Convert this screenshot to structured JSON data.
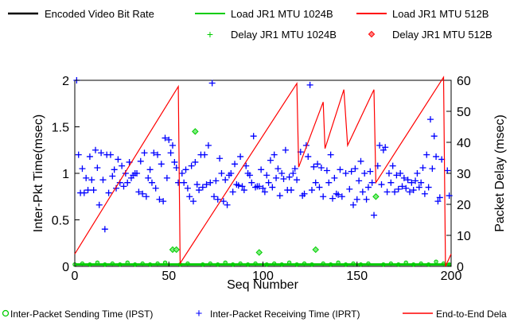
{
  "chart_data": {
    "type": "scatter",
    "xlabel": "Seq Number",
    "ylabel": "Inter-Pkt Time(msec)",
    "y2label": "Packet Delay (msec)",
    "xlim": [
      0,
      200
    ],
    "ylim": [
      0,
      2
    ],
    "y2lim": [
      0,
      60
    ],
    "xticks": [
      "0",
      "50",
      "100",
      "150",
      "200"
    ],
    "yticks": [
      "0",
      "0.5",
      "1",
      "1.5",
      "2"
    ],
    "y2ticks": [
      "0",
      "10",
      "20",
      "30",
      "40",
      "50",
      "60"
    ],
    "legend_top": [
      {
        "label": "Encoded Video Bit Rate",
        "symbol": "line",
        "color": "#000000"
      },
      {
        "label": "Load JR1 MTU 1024B",
        "symbol": "line",
        "color": "#00cc00"
      },
      {
        "label": "Load JR1 MTU 512B",
        "symbol": "line",
        "color": "#ff0000"
      },
      {
        "label": "Delay JR1 MTU 1024B",
        "symbol": "plus",
        "color": "#00cc00"
      },
      {
        "label": "Delay JR1 MTU 512B",
        "symbol": "diamond",
        "color": "#ff0000"
      }
    ],
    "legend_bottom": [
      {
        "label": "Inter-Packet Sending Time (IPST)",
        "symbol": "circle",
        "color": "#00cc00"
      },
      {
        "label": "Inter-Packet Receiving Time (IPRT)",
        "symbol": "plus",
        "color": "#0000ff"
      },
      {
        "label": "End-to-End Dela",
        "symbol": "line",
        "color": "#ff0000"
      }
    ],
    "series": [
      {
        "name": "End-to-End Dela",
        "axis": "right",
        "style": "line",
        "color": "#ff0000",
        "points": [
          [
            0,
            4
          ],
          [
            55,
            58
          ],
          [
            56,
            1
          ],
          [
            118,
            59
          ],
          [
            119,
            32
          ],
          [
            132,
            53
          ],
          [
            133,
            38
          ],
          [
            143,
            57
          ],
          [
            145,
            39
          ],
          [
            159,
            57
          ],
          [
            160,
            27
          ],
          [
            196,
            61
          ],
          [
            197,
            0
          ],
          [
            200,
            4
          ]
        ]
      },
      {
        "name": "Inter-Packet Receiving Time (IPRT)",
        "axis": "left",
        "style": "plus",
        "color": "#0000ff",
        "points": [
          [
            1,
            2.0
          ],
          [
            2,
            1.2
          ],
          [
            3,
            0.79
          ],
          [
            4,
            1.05
          ],
          [
            5,
            0.79
          ],
          [
            6,
            0.95
          ],
          [
            7,
            0.82
          ],
          [
            8,
            1.18
          ],
          [
            9,
            0.93
          ],
          [
            10,
            0.82
          ],
          [
            11,
            1.25
          ],
          [
            12,
            1.06
          ],
          [
            13,
            0.66
          ],
          [
            14,
            1.22
          ],
          [
            15,
            0.93
          ],
          [
            16,
            0.4
          ],
          [
            17,
            1.2
          ],
          [
            18,
            0.79
          ],
          [
            19,
            1.2
          ],
          [
            20,
            0.97
          ],
          [
            21,
            1.04
          ],
          [
            22,
            0.84
          ],
          [
            23,
            1.15
          ],
          [
            24,
            0.9
          ],
          [
            25,
            1.08
          ],
          [
            26,
            0.86
          ],
          [
            27,
            1.0
          ],
          [
            28,
            0.9
          ],
          [
            29,
            1.12
          ],
          [
            30,
            0.95
          ],
          [
            31,
            0.98
          ],
          [
            32,
            1.0
          ],
          [
            33,
            1.0
          ],
          [
            34,
            0.8
          ],
          [
            35,
            1.13
          ],
          [
            36,
            0.78
          ],
          [
            37,
            1.22
          ],
          [
            38,
            0.75
          ],
          [
            39,
            0.95
          ],
          [
            40,
            1.04
          ],
          [
            41,
            0.9
          ],
          [
            42,
            1.22
          ],
          [
            43,
            0.84
          ],
          [
            44,
            1.2
          ],
          [
            45,
            0.72
          ],
          [
            46,
            1.1
          ],
          [
            47,
            0.7
          ],
          [
            48,
            1.38
          ],
          [
            49,
            0.95
          ],
          [
            50,
            1.36
          ],
          [
            51,
            1.22
          ],
          [
            52,
            1.3
          ],
          [
            53,
            1.12
          ],
          [
            54,
            1.06
          ],
          [
            55,
            0.9
          ],
          [
            57,
            1.0
          ],
          [
            58,
            0.9
          ],
          [
            59,
            1.04
          ],
          [
            60,
            0.84
          ],
          [
            61,
            0.75
          ],
          [
            62,
            1.08
          ],
          [
            63,
            0.7
          ],
          [
            64,
            1.12
          ],
          [
            65,
            0.88
          ],
          [
            66,
            0.82
          ],
          [
            67,
            1.2
          ],
          [
            68,
            0.85
          ],
          [
            69,
            1.2
          ],
          [
            70,
            0.88
          ],
          [
            71,
            1.3
          ],
          [
            72,
            0.9
          ],
          [
            73,
            1.97
          ],
          [
            74,
            0.75
          ],
          [
            75,
            0.92
          ],
          [
            76,
            0.72
          ],
          [
            77,
            1.16
          ],
          [
            78,
            1.0
          ],
          [
            79,
            0.7
          ],
          [
            80,
            0.93
          ],
          [
            81,
            0.66
          ],
          [
            82,
            0.98
          ],
          [
            83,
            1.0
          ],
          [
            84,
            0.8
          ],
          [
            85,
            1.1
          ],
          [
            86,
            0.88
          ],
          [
            87,
            0.87
          ],
          [
            88,
            1.18
          ],
          [
            89,
            0.86
          ],
          [
            90,
            0.82
          ],
          [
            91,
            1.08
          ],
          [
            92,
            1.0
          ],
          [
            93,
            0.98
          ],
          [
            94,
            0.9
          ],
          [
            95,
            1.4
          ],
          [
            96,
            0.85
          ],
          [
            97,
            0.86
          ],
          [
            98,
            0.86
          ],
          [
            99,
            1.04
          ],
          [
            100,
            0.84
          ],
          [
            101,
            0.8
          ],
          [
            102,
            0.98
          ],
          [
            103,
            0.9
          ],
          [
            104,
            1.14
          ],
          [
            105,
            0.85
          ],
          [
            106,
            1.2
          ],
          [
            107,
            0.95
          ],
          [
            108,
            1.05
          ],
          [
            109,
            0.76
          ],
          [
            110,
            1.0
          ],
          [
            111,
            0.94
          ],
          [
            112,
            1.25
          ],
          [
            113,
            0.82
          ],
          [
            114,
            0.96
          ],
          [
            115,
            0.82
          ],
          [
            116,
            1.0
          ],
          [
            117,
            1.05
          ],
          [
            118,
            0.93
          ],
          [
            120,
            1.23
          ],
          [
            121,
            0.76
          ],
          [
            122,
            0.78
          ],
          [
            123,
            1.3
          ],
          [
            124,
            1.18
          ],
          [
            125,
            1.95
          ],
          [
            126,
            0.82
          ],
          [
            127,
            1.07
          ],
          [
            128,
            0.9
          ],
          [
            129,
            1.1
          ],
          [
            130,
            0.85
          ],
          [
            131,
            1.06
          ],
          [
            132,
            0.75
          ],
          [
            134,
            1.03
          ],
          [
            135,
            0.9
          ],
          [
            136,
            1.2
          ],
          [
            137,
            0.73
          ],
          [
            138,
            0.95
          ],
          [
            139,
            0.78
          ],
          [
            140,
            0.77
          ],
          [
            141,
            1.04
          ],
          [
            142,
            0.75
          ],
          [
            144,
            1.0
          ],
          [
            146,
            0.83
          ],
          [
            147,
            1.02
          ],
          [
            148,
            0.66
          ],
          [
            149,
            1.05
          ],
          [
            150,
            0.72
          ],
          [
            151,
            0.92
          ],
          [
            152,
            1.13
          ],
          [
            153,
            0.8
          ],
          [
            154,
            1.0
          ],
          [
            155,
            0.72
          ],
          [
            156,
            0.85
          ],
          [
            157,
            1.02
          ],
          [
            158,
            0.9
          ],
          [
            159,
            0.55
          ],
          [
            161,
            1.08
          ],
          [
            162,
            1.3
          ],
          [
            163,
            0.88
          ],
          [
            164,
            1.25
          ],
          [
            165,
            1.28
          ],
          [
            166,
            0.8
          ],
          [
            167,
            1.0
          ],
          [
            168,
            0.9
          ],
          [
            169,
            1.08
          ],
          [
            170,
            0.8
          ],
          [
            171,
            0.98
          ],
          [
            172,
            0.83
          ],
          [
            173,
            1.0
          ],
          [
            174,
            0.86
          ],
          [
            175,
            0.95
          ],
          [
            176,
            0.84
          ],
          [
            177,
            0.93
          ],
          [
            178,
            0.8
          ],
          [
            179,
            0.9
          ],
          [
            180,
            0.82
          ],
          [
            181,
            0.92
          ],
          [
            182,
            1.0
          ],
          [
            183,
            0.85
          ],
          [
            184,
            0.9
          ],
          [
            185,
            1.06
          ],
          [
            186,
            0.78
          ],
          [
            187,
            1.2
          ],
          [
            188,
            0.85
          ],
          [
            189,
            1.58
          ],
          [
            190,
            1.05
          ],
          [
            191,
            1.4
          ],
          [
            192,
            1.18
          ],
          [
            193,
            0.7
          ],
          [
            194,
            0.74
          ],
          [
            195,
            1.15
          ],
          [
            198,
            1.03
          ],
          [
            199,
            0.76
          ]
        ]
      },
      {
        "name": "Inter-Packet Sending Time (IPST)",
        "axis": "left",
        "style": "circle",
        "color": "#00cc00",
        "points": [
          [
            0,
            0.02
          ],
          [
            4,
            0.03
          ],
          [
            8,
            0.02
          ],
          [
            12,
            0.04
          ],
          [
            16,
            0.02
          ],
          [
            20,
            0.03
          ],
          [
            24,
            0.02
          ],
          [
            28,
            0.04
          ],
          [
            32,
            0.02
          ],
          [
            36,
            0.03
          ],
          [
            40,
            0.02
          ],
          [
            44,
            0.03
          ],
          [
            48,
            0.04
          ],
          [
            52,
            0.18
          ],
          [
            54,
            0.18
          ],
          [
            56,
            0.02
          ],
          [
            60,
            0.03
          ],
          [
            64,
            1.45
          ],
          [
            68,
            0.02
          ],
          [
            72,
            0.03
          ],
          [
            76,
            0.02
          ],
          [
            80,
            0.04
          ],
          [
            84,
            0.02
          ],
          [
            88,
            0.03
          ],
          [
            92,
            0.02
          ],
          [
            96,
            0.03
          ],
          [
            98,
            0.15
          ],
          [
            102,
            0.02
          ],
          [
            106,
            0.03
          ],
          [
            110,
            0.02
          ],
          [
            114,
            0.04
          ],
          [
            118,
            0.02
          ],
          [
            122,
            0.03
          ],
          [
            126,
            0.02
          ],
          [
            128,
            0.18
          ],
          [
            132,
            0.03
          ],
          [
            136,
            0.02
          ],
          [
            140,
            0.04
          ],
          [
            144,
            0.02
          ],
          [
            148,
            0.03
          ],
          [
            152,
            0.02
          ],
          [
            156,
            0.03
          ],
          [
            160,
            0.75
          ],
          [
            164,
            0.02
          ],
          [
            168,
            0.03
          ],
          [
            172,
            0.02
          ],
          [
            176,
            0.04
          ],
          [
            180,
            0.02
          ],
          [
            184,
            0.03
          ],
          [
            188,
            0.02
          ],
          [
            192,
            0.05
          ],
          [
            196,
            0.03
          ],
          [
            199,
            0.02
          ]
        ]
      }
    ]
  }
}
